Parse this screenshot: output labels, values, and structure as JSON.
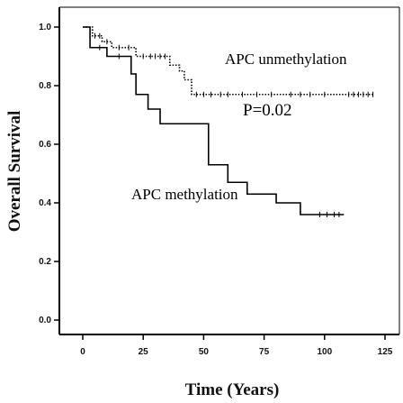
{
  "chart_data": {
    "type": "line",
    "plot_subtype": "kaplan-meier survival curve",
    "xlabel": "Time (Years)",
    "ylabel": "Overall Survival",
    "xlim": [
      0,
      125
    ],
    "ylim": [
      0,
      1
    ],
    "x_ticks": [
      "0",
      "25",
      "50",
      "75",
      "100",
      "125"
    ],
    "y_ticks": [
      "0.0",
      "0.2",
      "0.4",
      "0.6",
      "0.8",
      "1.0"
    ],
    "grid": false,
    "series": [
      {
        "name": "APC unmethylation",
        "style": "dotted",
        "color": "#000000",
        "steps": [
          {
            "x": 0,
            "y": 1.0
          },
          {
            "x": 4,
            "y": 0.97
          },
          {
            "x": 8,
            "y": 0.95
          },
          {
            "x": 12,
            "y": 0.93
          },
          {
            "x": 22,
            "y": 0.9
          },
          {
            "x": 36,
            "y": 0.87
          },
          {
            "x": 40,
            "y": 0.85
          },
          {
            "x": 42,
            "y": 0.82
          },
          {
            "x": 45,
            "y": 0.77
          },
          {
            "x": 120,
            "y": 0.77
          }
        ],
        "censor_x": [
          5,
          7,
          10,
          15,
          19,
          25,
          28,
          30,
          32,
          34,
          47,
          50,
          53,
          57,
          60,
          66,
          72,
          78,
          86,
          90,
          94,
          100,
          110,
          112,
          114,
          116,
          118,
          120
        ]
      },
      {
        "name": "APC methylation",
        "style": "solid",
        "color": "#000000",
        "steps": [
          {
            "x": 0,
            "y": 1.0
          },
          {
            "x": 3,
            "y": 0.93
          },
          {
            "x": 10,
            "y": 0.9
          },
          {
            "x": 20,
            "y": 0.84
          },
          {
            "x": 22,
            "y": 0.77
          },
          {
            "x": 27,
            "y": 0.72
          },
          {
            "x": 32,
            "y": 0.67
          },
          {
            "x": 52,
            "y": 0.53
          },
          {
            "x": 60,
            "y": 0.47
          },
          {
            "x": 68,
            "y": 0.43
          },
          {
            "x": 80,
            "y": 0.4
          },
          {
            "x": 90,
            "y": 0.36
          },
          {
            "x": 108,
            "y": 0.36
          }
        ],
        "censor_x": [
          7,
          15,
          98,
          101,
          104,
          106
        ]
      }
    ],
    "annotations": [
      {
        "text": "APC unmethylation",
        "x": 83,
        "y": 0.93,
        "size": "large"
      },
      {
        "text": "P=0.02",
        "x": 83,
        "y": 0.66,
        "size": "large"
      },
      {
        "text": "APC methylation",
        "x": 55,
        "y": 0.35,
        "size": "large"
      }
    ]
  }
}
